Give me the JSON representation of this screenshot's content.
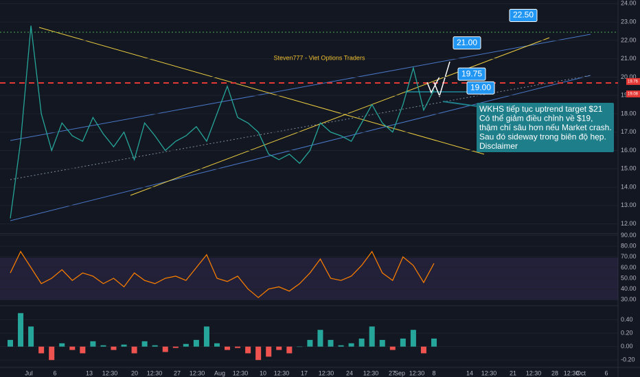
{
  "chart_data": [
    {
      "type": "line",
      "title": "Steven777 - Viet Options Traders",
      "color": "#26a69a",
      "values": [
        12.3,
        16.5,
        22.8,
        18,
        16,
        17.5,
        16.8,
        16.5,
        17.8,
        16.9,
        16.2,
        17,
        15.5,
        17.5,
        16.8,
        16,
        16.5,
        16.8,
        17.3,
        16.5,
        18,
        19.5,
        17.8,
        17.5,
        17,
        15.8,
        15.5,
        15.8,
        15.3,
        16,
        17.5,
        17,
        16.8,
        16.5,
        17.5,
        18.5,
        17.5,
        17,
        18.5,
        20.5,
        18.2,
        19.3
      ],
      "ylim": [
        11.5,
        24.2
      ],
      "yticks": [
        {
          "value": 24,
          "label": "24.00"
        },
        {
          "value": 23,
          "label": "23.00"
        },
        {
          "value": 22,
          "label": "22.00"
        },
        {
          "value": 21,
          "label": "21.00"
        },
        {
          "value": 20,
          "label": "20.00"
        },
        {
          "value": 19,
          "label": "19.00"
        },
        {
          "value": 18,
          "label": "18.00"
        },
        {
          "value": 17,
          "label": "17.00"
        },
        {
          "value": 16,
          "label": "16.00"
        },
        {
          "value": 15,
          "label": "15.00"
        },
        {
          "value": 14,
          "label": "14.00"
        },
        {
          "value": 13,
          "label": "13.00"
        },
        {
          "value": 12,
          "label": "12.00"
        }
      ],
      "price_targets": [
        {
          "value": 22.5,
          "label": "22.50"
        },
        {
          "value": 21,
          "label": "21.00"
        },
        {
          "value": 19.75,
          "label": "19.75"
        },
        {
          "value": 19,
          "label": "19.00"
        }
      ],
      "last_prices": [
        {
          "value": 19.76,
          "label": "19.76"
        },
        {
          "value": 19.08,
          "label": "19.08"
        }
      ],
      "callout": [
        "WKHS tiếp tục uptrend target $21",
        "Có thể giảm điều chỉnh về $19,",
        "thậm chí sâu hơn nếu Market crash.",
        "Sau đó sideway trong biên độ hẹp.",
        "Disclaimer"
      ]
    },
    {
      "type": "line",
      "color": "#f57c00",
      "values": [
        55,
        75,
        60,
        45,
        50,
        58,
        48,
        55,
        52,
        45,
        50,
        42,
        55,
        48,
        45,
        50,
        52,
        48,
        60,
        72,
        50,
        47,
        52,
        40,
        32,
        40,
        42,
        38,
        45,
        55,
        68,
        50,
        48,
        52,
        62,
        75,
        55,
        48,
        70,
        62,
        46,
        64
      ],
      "ylim": [
        25,
        91
      ],
      "yticks": [
        {
          "value": 90,
          "label": "90.00"
        },
        {
          "value": 80,
          "label": "80.00"
        },
        {
          "value": 70,
          "label": "70.00"
        },
        {
          "value": 60,
          "label": "60.00"
        },
        {
          "value": 50,
          "label": "50.00"
        },
        {
          "value": 40,
          "label": "40.00"
        },
        {
          "value": 30,
          "label": "30.00"
        }
      ]
    },
    {
      "type": "bar",
      "color": "#26a69a",
      "values": [
        0.1,
        0.5,
        0.3,
        -0.1,
        -0.2,
        0.05,
        -0.05,
        -0.1,
        0.08,
        0.02,
        -0.05,
        0.03,
        -0.1,
        0.08,
        0.02,
        -0.08,
        -0.02,
        0.04,
        0.1,
        0.3,
        0.05,
        -0.05,
        -0.02,
        -0.1,
        -0.2,
        -0.15,
        -0.05,
        -0.1,
        0.0,
        0.1,
        0.25,
        0.1,
        0.02,
        0.05,
        0.12,
        0.3,
        0.1,
        -0.05,
        0.12,
        0.25,
        -0.1,
        0.12
      ],
      "ylim": [
        -0.3,
        0.6
      ],
      "yticks": [
        {
          "value": 0.4,
          "label": "0.40"
        },
        {
          "value": 0.2,
          "label": "0.20"
        },
        {
          "value": 0,
          "label": "0.00"
        },
        {
          "value": -0.2,
          "label": "-0.20"
        }
      ],
      "xtick_labels": [
        "Jul",
        "6",
        "13",
        "12:30",
        "20",
        "12:30",
        "27",
        "12:30",
        "Aug",
        "12:30",
        "10",
        "12:30",
        "17",
        "12:30",
        "24",
        "12:30",
        "27",
        "Sep",
        "12:30",
        "8",
        "14",
        "12:30",
        "21",
        "12:30",
        "28",
        "12:30",
        "Oct",
        "6"
      ]
    }
  ]
}
